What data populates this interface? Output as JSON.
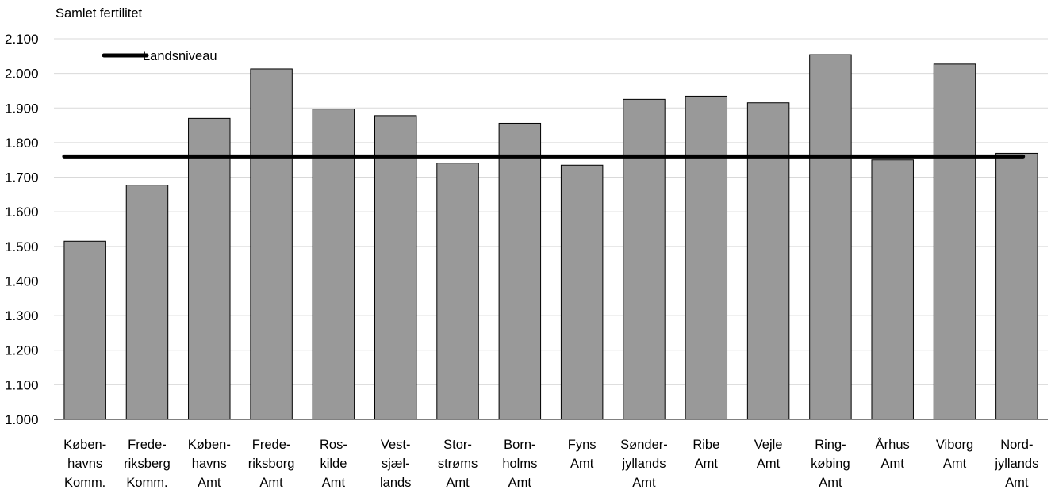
{
  "chart_data": {
    "type": "bar",
    "ylabel": "Samlet fertilitet",
    "ylim": [
      1000,
      2100
    ],
    "y_ticks": [
      1000,
      1100,
      1200,
      1300,
      1400,
      1500,
      1600,
      1700,
      1800,
      1900,
      2000,
      2100
    ],
    "y_tick_labels": [
      "1.000",
      "1.100",
      "1.200",
      "1.300",
      "1.400",
      "1.500",
      "1.600",
      "1.700",
      "1.800",
      "1.900",
      "2.000",
      "2.100"
    ],
    "grid": true,
    "categories": [
      [
        "Køben-",
        "havns",
        "Komm."
      ],
      [
        "Frede-",
        "riksberg",
        "Komm."
      ],
      [
        "Køben-",
        "havns",
        "Amt"
      ],
      [
        "Frede-",
        "riksborg",
        "Amt"
      ],
      [
        "Ros-",
        "kilde",
        "Amt"
      ],
      [
        "Vest-",
        "sjæl-",
        "lands"
      ],
      [
        "Stor-",
        "strøms",
        "Amt"
      ],
      [
        "Born-",
        "holms",
        "Amt"
      ],
      [
        "Fyns",
        "Amt"
      ],
      [
        "Sønder-",
        "jyllands",
        "Amt"
      ],
      [
        "Ribe",
        "Amt"
      ],
      [
        "Vejle",
        "Amt"
      ],
      [
        "Ring-",
        "købing",
        "Amt"
      ],
      [
        "Århus",
        "Amt"
      ],
      [
        "Viborg",
        "Amt"
      ],
      [
        "Nord-",
        "jyllands",
        "Amt"
      ]
    ],
    "values": [
      1515,
      1677,
      1870,
      2013,
      1897,
      1878,
      1741,
      1856,
      1735,
      1925,
      1934,
      1915,
      2054,
      1750,
      2027,
      1769
    ],
    "bar_color": "#999999",
    "reference_line": {
      "name": "Landsniveau",
      "value": 1760,
      "color": "#000000"
    },
    "legend_placement": "top-left"
  }
}
